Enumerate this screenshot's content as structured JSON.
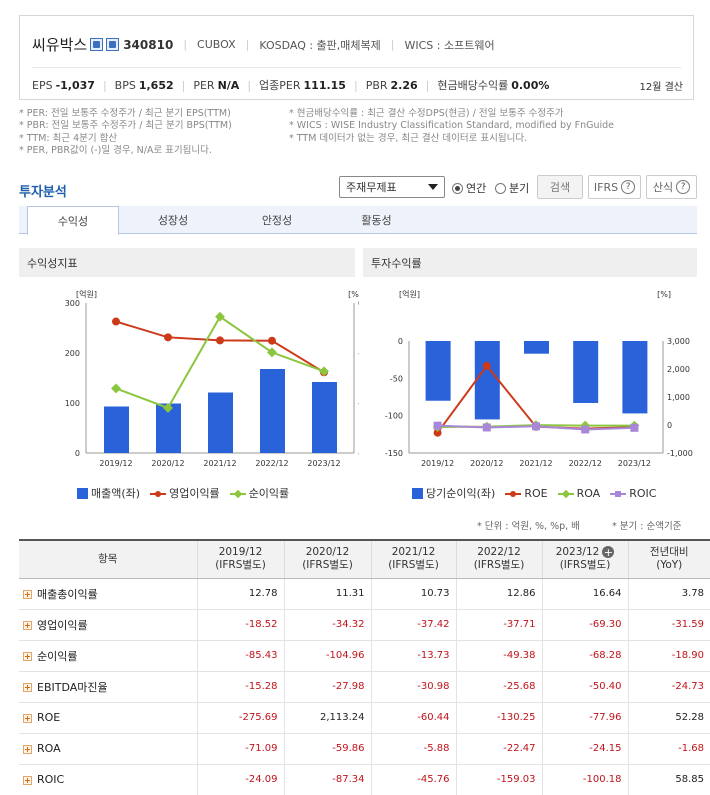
{
  "header": {
    "company_name": "씨유박스",
    "code": "340810",
    "english_name": "CUBOX",
    "market_sector": "KOSDAQ : 출판,매체복제",
    "wics": "WICS : 소프트웨어",
    "metrics": [
      {
        "label": "EPS",
        "value": "-1,037"
      },
      {
        "label": "BPS",
        "value": "1,652"
      },
      {
        "label": "PER",
        "value": "N/A"
      },
      {
        "label": "업종PER",
        "value": "111.15"
      },
      {
        "label": "PBR",
        "value": "2.26"
      },
      {
        "label": "현금배당수익률",
        "value": "0.00%"
      }
    ],
    "settlement": "12월 결산"
  },
  "notes": {
    "left": [
      "* PER: 전일 보통주 수정주가 / 최근 분기 EPS(TTM)",
      "* PBR: 전일 보통주 수정주가 / 최근 분기 BPS(TTM)",
      "* TTM: 최근 4분기 합산",
      "* PER, PBR값이 (-)일 경우, N/A로 표기됩니다."
    ],
    "right": [
      "* 현금배당수익률 : 최근 결산 수정DPS(현금) / 전일 보통주 수정주가",
      "* WICS : WISE Industry Classification Standard, modified by FnGuide",
      "* TTM 데이터가 없는 경우, 최근 결산 데이터로 표시됩니다."
    ]
  },
  "section": {
    "title": "투자분석",
    "select_value": "주재무제표",
    "radio_annual": "연간",
    "radio_quarter": "분기",
    "search_button": "검색",
    "ifrs_button": "IFRS",
    "formula_button": "산식"
  },
  "tabs": [
    "수익성",
    "성장성",
    "안정성",
    "활동성"
  ],
  "panels": {
    "left_title": "수익성지표",
    "right_title": "투자수익률"
  },
  "chart_data": [
    {
      "type": "bar",
      "title": "수익성지표",
      "categories": [
        "2019/12",
        "2020/12",
        "2021/12",
        "2022/12",
        "2023/12"
      ],
      "y_left_label": "[억원]",
      "y_right_label": "[%]",
      "ylim_left": [
        0,
        300
      ],
      "y_left_ticks": [
        "300",
        "200",
        "100",
        "0"
      ],
      "ylim_right": [
        -150,
        0
      ],
      "y_right_ticks": [
        "0",
        "-50",
        "-100",
        "-150"
      ],
      "series": [
        {
          "name": "매출액(좌)",
          "type": "bar",
          "axis": "left",
          "color": "#2962d9",
          "values": [
            93,
            99,
            121,
            168,
            142
          ]
        },
        {
          "name": "영업이익률",
          "type": "line",
          "axis": "right",
          "color": "#cc3a1a",
          "marker": "circle",
          "values": [
            -18.52,
            -34.32,
            -37.42,
            -37.71,
            -69.3
          ]
        },
        {
          "name": "순이익률",
          "type": "line",
          "axis": "right",
          "color": "#8cc63e",
          "marker": "diamond",
          "values": [
            -85.43,
            -104.96,
            -13.73,
            -49.38,
            -68.28
          ]
        }
      ],
      "grid": false,
      "legend": "bottom"
    },
    {
      "type": "bar",
      "title": "투자수익률",
      "categories": [
        "2019/12",
        "2020/12",
        "2021/12",
        "2022/12",
        "2023/12"
      ],
      "y_left_label": "[억원]",
      "y_right_label": "[%]",
      "ylim_left": [
        -150,
        0
      ],
      "y_left_ticks": [
        "0",
        "-50",
        "-100",
        "-150"
      ],
      "ylim_right": [
        -1000,
        3000
      ],
      "y_right_ticks": [
        "3,000",
        "2,000",
        "1,000",
        "0",
        "-1,000"
      ],
      "series": [
        {
          "name": "당기순이익(좌)",
          "type": "bar",
          "axis": "left",
          "color": "#2962d9",
          "values": [
            -80,
            -105,
            -17,
            -83,
            -97
          ]
        },
        {
          "name": "ROE",
          "type": "line",
          "axis": "right",
          "color": "#cc3a1a",
          "marker": "circle",
          "values": [
            -275.69,
            2113.24,
            -60.44,
            -130.25,
            -77.96
          ]
        },
        {
          "name": "ROA",
          "type": "line",
          "axis": "right",
          "color": "#8cc63e",
          "marker": "diamond",
          "values": [
            -71.09,
            -59.86,
            -5.88,
            -22.47,
            -24.15
          ]
        },
        {
          "name": "ROIC",
          "type": "line",
          "axis": "right",
          "color": "#a987d8",
          "marker": "square",
          "values": [
            -24.09,
            -87.34,
            -45.76,
            -159.03,
            -100.18
          ]
        }
      ],
      "grid": false,
      "legend": "bottom"
    }
  ],
  "units_note": "* 단위 : 억원, %, %p, 배",
  "quarter_note": "* 분기 : 순액기준",
  "table": {
    "headers": [
      {
        "main": "항목",
        "sub": ""
      },
      {
        "main": "2019/12",
        "sub": "(IFRS별도)"
      },
      {
        "main": "2020/12",
        "sub": "(IFRS별도)"
      },
      {
        "main": "2021/12",
        "sub": "(IFRS별도)"
      },
      {
        "main": "2022/12",
        "sub": "(IFRS별도)"
      },
      {
        "main": "2023/12",
        "sub": "(IFRS별도)"
      },
      {
        "main": "전년대비",
        "sub": "(YoY)"
      }
    ],
    "rows": [
      {
        "label": "매출총이익률",
        "cells": [
          "12.78",
          "11.31",
          "10.73",
          "12.86",
          "16.64",
          "3.78"
        ]
      },
      {
        "label": "영업이익률",
        "cells": [
          "-18.52",
          "-34.32",
          "-37.42",
          "-37.71",
          "-69.30",
          "-31.59"
        ]
      },
      {
        "label": "순이익률",
        "cells": [
          "-85.43",
          "-104.96",
          "-13.73",
          "-49.38",
          "-68.28",
          "-18.90"
        ]
      },
      {
        "label": "EBITDA마진율",
        "cells": [
          "-15.28",
          "-27.98",
          "-30.98",
          "-25.68",
          "-50.40",
          "-24.73"
        ]
      },
      {
        "label": "ROE",
        "cells": [
          "-275.69",
          "2,113.24",
          "-60.44",
          "-130.25",
          "-77.96",
          "52.28"
        ]
      },
      {
        "label": "ROA",
        "cells": [
          "-71.09",
          "-59.86",
          "-5.88",
          "-22.47",
          "-24.15",
          "-1.68"
        ]
      },
      {
        "label": "ROIC",
        "cells": [
          "-24.09",
          "-87.34",
          "-45.76",
          "-159.03",
          "-100.18",
          "58.85"
        ]
      }
    ]
  }
}
